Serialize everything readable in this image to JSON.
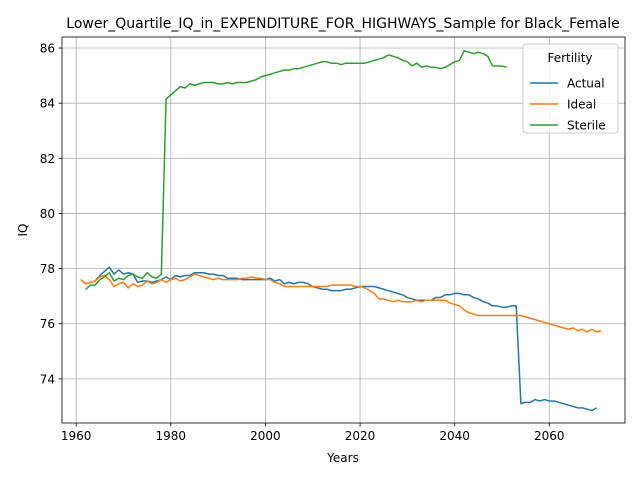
{
  "chart_data": {
    "type": "line",
    "title": "Lower_Quartile_IQ_in_EXPENDITURE_FOR_HIGHWAYS_Sample for Black_Female",
    "xlabel": "Years",
    "ylabel": "IQ",
    "xlim": [
      1957,
      2076
    ],
    "ylim": [
      72.4,
      86.4
    ],
    "xticks": [
      1960,
      1980,
      2000,
      2020,
      2040,
      2060
    ],
    "yticks": [
      74,
      76,
      78,
      80,
      82,
      84,
      86
    ],
    "grid": true,
    "legend": {
      "title": "Fertility",
      "placement": "top-right"
    },
    "series": [
      {
        "name": "Actual",
        "color": "#1f77b4",
        "points": [
          [
            1961,
            77.6
          ],
          [
            1962,
            77.45
          ],
          [
            1963,
            77.5
          ],
          [
            1964,
            77.55
          ],
          [
            1965,
            77.75
          ],
          [
            1966,
            77.9
          ],
          [
            1967,
            78.05
          ],
          [
            1968,
            77.8
          ],
          [
            1969,
            77.95
          ],
          [
            1970,
            77.8
          ],
          [
            1971,
            77.85
          ],
          [
            1972,
            77.8
          ],
          [
            1973,
            77.5
          ],
          [
            1974,
            77.55
          ],
          [
            1975,
            77.55
          ],
          [
            1976,
            77.5
          ],
          [
            1977,
            77.55
          ],
          [
            1978,
            77.6
          ],
          [
            1979,
            77.7
          ],
          [
            1980,
            77.6
          ],
          [
            1981,
            77.75
          ],
          [
            1982,
            77.7
          ],
          [
            1983,
            77.75
          ],
          [
            1984,
            77.75
          ],
          [
            1985,
            77.85
          ],
          [
            1986,
            77.85
          ],
          [
            1987,
            77.85
          ],
          [
            1988,
            77.8
          ],
          [
            1989,
            77.8
          ],
          [
            1990,
            77.75
          ],
          [
            1991,
            77.75
          ],
          [
            1992,
            77.65
          ],
          [
            1993,
            77.65
          ],
          [
            1994,
            77.65
          ],
          [
            1995,
            77.6
          ],
          [
            1996,
            77.6
          ],
          [
            1997,
            77.6
          ],
          [
            1998,
            77.6
          ],
          [
            1999,
            77.6
          ],
          [
            2000,
            77.6
          ],
          [
            2001,
            77.65
          ],
          [
            2002,
            77.55
          ],
          [
            2003,
            77.6
          ],
          [
            2004,
            77.45
          ],
          [
            2005,
            77.5
          ],
          [
            2006,
            77.45
          ],
          [
            2007,
            77.5
          ],
          [
            2008,
            77.5
          ],
          [
            2009,
            77.45
          ],
          [
            2010,
            77.35
          ],
          [
            2011,
            77.3
          ],
          [
            2012,
            77.25
          ],
          [
            2013,
            77.25
          ],
          [
            2014,
            77.2
          ],
          [
            2015,
            77.2
          ],
          [
            2016,
            77.2
          ],
          [
            2017,
            77.25
          ],
          [
            2018,
            77.25
          ],
          [
            2019,
            77.3
          ],
          [
            2020,
            77.35
          ],
          [
            2021,
            77.35
          ],
          [
            2022,
            77.35
          ],
          [
            2023,
            77.35
          ],
          [
            2024,
            77.3
          ],
          [
            2025,
            77.25
          ],
          [
            2026,
            77.2
          ],
          [
            2027,
            77.15
          ],
          [
            2028,
            77.1
          ],
          [
            2029,
            77.05
          ],
          [
            2030,
            76.95
          ],
          [
            2031,
            76.9
          ],
          [
            2032,
            76.85
          ],
          [
            2033,
            76.85
          ],
          [
            2034,
            76.85
          ],
          [
            2035,
            76.85
          ],
          [
            2036,
            76.95
          ],
          [
            2037,
            76.95
          ],
          [
            2038,
            77.05
          ],
          [
            2039,
            77.05
          ],
          [
            2040,
            77.1
          ],
          [
            2041,
            77.1
          ],
          [
            2042,
            77.05
          ],
          [
            2043,
            77.05
          ],
          [
            2044,
            76.95
          ],
          [
            2045,
            76.9
          ],
          [
            2046,
            76.8
          ],
          [
            2047,
            76.75
          ],
          [
            2048,
            76.65
          ],
          [
            2049,
            76.65
          ],
          [
            2050,
            76.6
          ],
          [
            2051,
            76.6
          ],
          [
            2052,
            76.65
          ],
          [
            2053,
            76.65
          ],
          [
            2054,
            73.1
          ],
          [
            2055,
            73.15
          ],
          [
            2056,
            73.15
          ],
          [
            2057,
            73.25
          ],
          [
            2058,
            73.2
          ],
          [
            2059,
            73.25
          ],
          [
            2060,
            73.2
          ],
          [
            2061,
            73.2
          ],
          [
            2062,
            73.15
          ],
          [
            2063,
            73.1
          ],
          [
            2064,
            73.05
          ],
          [
            2065,
            73.0
          ],
          [
            2066,
            72.95
          ],
          [
            2067,
            72.95
          ],
          [
            2068,
            72.9
          ],
          [
            2069,
            72.85
          ],
          [
            2070,
            72.95
          ]
        ]
      },
      {
        "name": "Ideal",
        "color": "#ff7f0e",
        "points": [
          [
            1961,
            77.6
          ],
          [
            1962,
            77.45
          ],
          [
            1963,
            77.5
          ],
          [
            1964,
            77.55
          ],
          [
            1965,
            77.7
          ],
          [
            1966,
            77.75
          ],
          [
            1967,
            77.6
          ],
          [
            1968,
            77.35
          ],
          [
            1969,
            77.45
          ],
          [
            1970,
            77.5
          ],
          [
            1971,
            77.3
          ],
          [
            1972,
            77.45
          ],
          [
            1973,
            77.35
          ],
          [
            1974,
            77.4
          ],
          [
            1975,
            77.55
          ],
          [
            1976,
            77.45
          ],
          [
            1977,
            77.5
          ],
          [
            1978,
            77.6
          ],
          [
            1979,
            77.5
          ],
          [
            1980,
            77.6
          ],
          [
            1981,
            77.65
          ],
          [
            1982,
            77.55
          ],
          [
            1983,
            77.6
          ],
          [
            1984,
            77.7
          ],
          [
            1985,
            77.8
          ],
          [
            1986,
            77.75
          ],
          [
            1987,
            77.7
          ],
          [
            1988,
            77.65
          ],
          [
            1989,
            77.6
          ],
          [
            1990,
            77.65
          ],
          [
            1991,
            77.6
          ],
          [
            1992,
            77.6
          ],
          [
            1993,
            77.6
          ],
          [
            1994,
            77.6
          ],
          [
            1995,
            77.65
          ],
          [
            1996,
            77.65
          ],
          [
            1997,
            77.7
          ],
          [
            1998,
            77.65
          ],
          [
            1999,
            77.65
          ],
          [
            2000,
            77.6
          ],
          [
            2001,
            77.6
          ],
          [
            2002,
            77.5
          ],
          [
            2003,
            77.45
          ],
          [
            2004,
            77.35
          ],
          [
            2005,
            77.35
          ],
          [
            2006,
            77.35
          ],
          [
            2007,
            77.35
          ],
          [
            2008,
            77.35
          ],
          [
            2009,
            77.35
          ],
          [
            2010,
            77.35
          ],
          [
            2011,
            77.35
          ],
          [
            2012,
            77.35
          ],
          [
            2013,
            77.35
          ],
          [
            2014,
            77.4
          ],
          [
            2015,
            77.4
          ],
          [
            2016,
            77.4
          ],
          [
            2017,
            77.4
          ],
          [
            2018,
            77.4
          ],
          [
            2019,
            77.35
          ],
          [
            2020,
            77.35
          ],
          [
            2021,
            77.3
          ],
          [
            2022,
            77.2
          ],
          [
            2023,
            77.1
          ],
          [
            2024,
            76.9
          ],
          [
            2025,
            76.9
          ],
          [
            2026,
            76.85
          ],
          [
            2027,
            76.8
          ],
          [
            2028,
            76.85
          ],
          [
            2029,
            76.8
          ],
          [
            2030,
            76.8
          ],
          [
            2031,
            76.8
          ],
          [
            2032,
            76.85
          ],
          [
            2033,
            76.8
          ],
          [
            2034,
            76.85
          ],
          [
            2035,
            76.85
          ],
          [
            2036,
            76.85
          ],
          [
            2037,
            76.85
          ],
          [
            2038,
            76.85
          ],
          [
            2039,
            76.75
          ],
          [
            2040,
            76.7
          ],
          [
            2041,
            76.65
          ],
          [
            2042,
            76.5
          ],
          [
            2043,
            76.4
          ],
          [
            2044,
            76.35
          ],
          [
            2045,
            76.3
          ],
          [
            2046,
            76.3
          ],
          [
            2047,
            76.3
          ],
          [
            2048,
            76.3
          ],
          [
            2049,
            76.3
          ],
          [
            2050,
            76.3
          ],
          [
            2051,
            76.3
          ],
          [
            2052,
            76.3
          ],
          [
            2053,
            76.3
          ],
          [
            2054,
            76.3
          ],
          [
            2055,
            76.25
          ],
          [
            2056,
            76.2
          ],
          [
            2057,
            76.15
          ],
          [
            2058,
            76.1
          ],
          [
            2059,
            76.05
          ],
          [
            2060,
            76.0
          ],
          [
            2061,
            75.95
          ],
          [
            2062,
            75.9
          ],
          [
            2063,
            75.85
          ],
          [
            2064,
            75.8
          ],
          [
            2065,
            75.85
          ],
          [
            2066,
            75.75
          ],
          [
            2067,
            75.8
          ],
          [
            2068,
            75.7
          ],
          [
            2069,
            75.8
          ],
          [
            2070,
            75.7
          ],
          [
            2071,
            75.75
          ]
        ]
      },
      {
        "name": "Sterile",
        "color": "#2ca02c",
        "points": [
          [
            1962,
            77.25
          ],
          [
            1963,
            77.4
          ],
          [
            1964,
            77.4
          ],
          [
            1965,
            77.6
          ],
          [
            1966,
            77.7
          ],
          [
            1967,
            77.85
          ],
          [
            1968,
            77.55
          ],
          [
            1969,
            77.65
          ],
          [
            1970,
            77.6
          ],
          [
            1971,
            77.75
          ],
          [
            1972,
            77.8
          ],
          [
            1973,
            77.7
          ],
          [
            1974,
            77.65
          ],
          [
            1975,
            77.85
          ],
          [
            1976,
            77.7
          ],
          [
            1977,
            77.65
          ],
          [
            1978,
            77.8
          ],
          [
            1979,
            84.15
          ],
          [
            1980,
            84.3
          ],
          [
            1981,
            84.45
          ],
          [
            1982,
            84.6
          ],
          [
            1983,
            84.55
          ],
          [
            1984,
            84.7
          ],
          [
            1985,
            84.65
          ],
          [
            1986,
            84.7
          ],
          [
            1987,
            84.75
          ],
          [
            1988,
            84.75
          ],
          [
            1989,
            84.75
          ],
          [
            1990,
            84.7
          ],
          [
            1991,
            84.7
          ],
          [
            1992,
            84.75
          ],
          [
            1993,
            84.7
          ],
          [
            1994,
            84.75
          ],
          [
            1995,
            84.75
          ],
          [
            1996,
            84.75
          ],
          [
            1997,
            84.8
          ],
          [
            1998,
            84.85
          ],
          [
            1999,
            84.95
          ],
          [
            2000,
            85.0
          ],
          [
            2001,
            85.05
          ],
          [
            2002,
            85.1
          ],
          [
            2003,
            85.15
          ],
          [
            2004,
            85.2
          ],
          [
            2005,
            85.2
          ],
          [
            2006,
            85.25
          ],
          [
            2007,
            85.25
          ],
          [
            2008,
            85.3
          ],
          [
            2009,
            85.35
          ],
          [
            2010,
            85.4
          ],
          [
            2011,
            85.45
          ],
          [
            2012,
            85.5
          ],
          [
            2013,
            85.5
          ],
          [
            2014,
            85.45
          ],
          [
            2015,
            85.45
          ],
          [
            2016,
            85.4
          ],
          [
            2017,
            85.45
          ],
          [
            2018,
            85.45
          ],
          [
            2019,
            85.45
          ],
          [
            2020,
            85.45
          ],
          [
            2021,
            85.45
          ],
          [
            2022,
            85.5
          ],
          [
            2023,
            85.55
          ],
          [
            2024,
            85.6
          ],
          [
            2025,
            85.65
          ],
          [
            2026,
            85.75
          ],
          [
            2027,
            85.7
          ],
          [
            2028,
            85.65
          ],
          [
            2029,
            85.55
          ],
          [
            2030,
            85.5
          ],
          [
            2031,
            85.35
          ],
          [
            2032,
            85.45
          ],
          [
            2033,
            85.3
          ],
          [
            2034,
            85.35
          ],
          [
            2035,
            85.3
          ],
          [
            2036,
            85.3
          ],
          [
            2037,
            85.25
          ],
          [
            2038,
            85.3
          ],
          [
            2039,
            85.4
          ],
          [
            2040,
            85.5
          ],
          [
            2041,
            85.55
          ],
          [
            2042,
            85.9
          ],
          [
            2043,
            85.85
          ],
          [
            2044,
            85.8
          ],
          [
            2045,
            85.85
          ],
          [
            2046,
            85.8
          ],
          [
            2047,
            85.7
          ],
          [
            2048,
            85.35
          ],
          [
            2049,
            85.35
          ],
          [
            2050,
            85.35
          ],
          [
            2051,
            85.3
          ]
        ]
      }
    ]
  }
}
